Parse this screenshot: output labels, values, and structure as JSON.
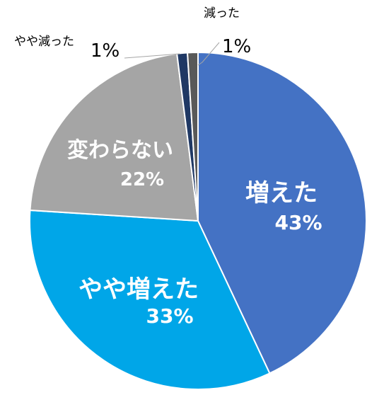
{
  "chart_data": {
    "type": "pie",
    "title": "",
    "slices": [
      {
        "label": "増えた",
        "value": 43,
        "display": "43%",
        "color": "#4472C4"
      },
      {
        "label": "やや増えた",
        "value": 33,
        "display": "33%",
        "color": "#00A6E8"
      },
      {
        "label": "変わらない",
        "value": 22,
        "display": "22%",
        "color": "#A5A5A5"
      },
      {
        "label": "やや減った",
        "value": 1,
        "display": "1%",
        "color": "#1F3864"
      },
      {
        "label": "減った",
        "value": 1,
        "display": "1%",
        "color": "#595959"
      }
    ]
  }
}
